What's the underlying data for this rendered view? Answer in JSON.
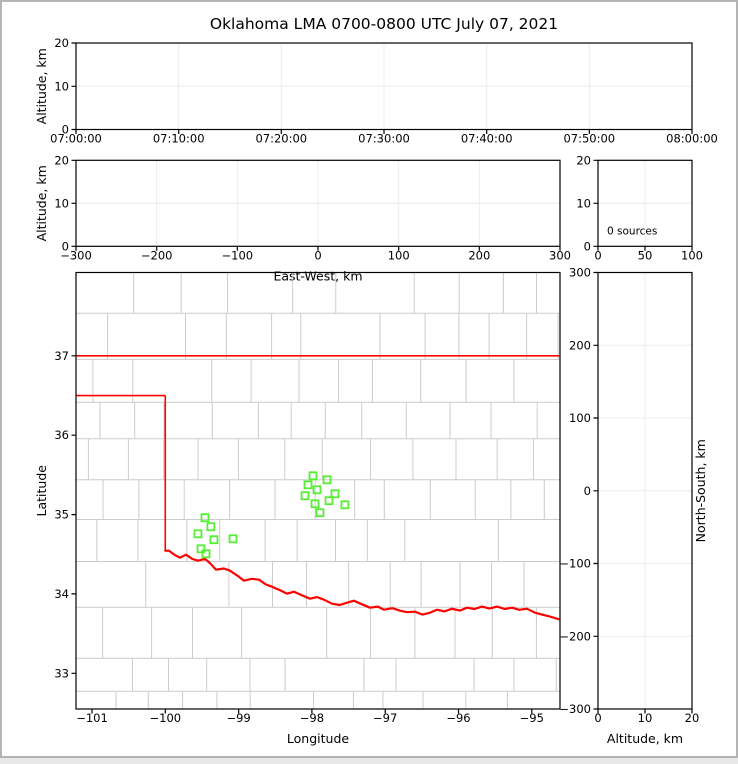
{
  "title": "Oklahoma LMA 0700-0800 UTC July 07, 2021",
  "colors": {
    "axis": "#000000",
    "grid": "#ececec",
    "county_line": "#cccccc",
    "state_border": "#ff0000",
    "station_marker": "#55ee33",
    "background": "#ffffff",
    "outer_frame": "#b4b4b4"
  },
  "chart_data": [
    {
      "id": "altitude_vs_time",
      "type": "scatter",
      "title": "",
      "xlabel": "",
      "ylabel": "Altitude, km",
      "x_tick_labels": [
        "07:00:00",
        "07:10:00",
        "07:20:00",
        "07:30:00",
        "07:40:00",
        "07:50:00",
        "08:00:00"
      ],
      "ylim": [
        0,
        20
      ],
      "yticks": [
        0,
        10,
        20
      ],
      "grid": true,
      "points": []
    },
    {
      "id": "altitude_vs_east_west",
      "type": "scatter",
      "xlabel": "East-West, km",
      "ylabel": "Altitude, km",
      "xlim": [
        -300,
        300
      ],
      "xticks": [
        -300,
        -200,
        -100,
        0,
        100,
        200,
        300
      ],
      "ylim": [
        0,
        20
      ],
      "yticks": [
        0,
        10,
        20
      ],
      "grid": true,
      "points": []
    },
    {
      "id": "source_count_histogram",
      "type": "line",
      "annotation": "0 sources",
      "xlabel": "",
      "ylabel": "",
      "xlim": [
        0,
        100
      ],
      "xticks": [
        0,
        50,
        100
      ],
      "ylim": [
        0,
        20
      ],
      "yticks": [
        0,
        10,
        20
      ],
      "grid": true,
      "points": []
    },
    {
      "id": "plan_view_map",
      "type": "scatter",
      "xlabel": "Longitude",
      "ylabel": "Latitude",
      "xlim": [
        -101.218,
        -94.615
      ],
      "xticks": [
        -101,
        -100,
        -99,
        -98,
        -97,
        -96,
        -95
      ],
      "ylim": [
        32.55,
        38.05
      ],
      "yticks": [
        33,
        34,
        35,
        36,
        37
      ],
      "grid": false,
      "stations": [
        [
          -97.985,
          35.489
        ],
        [
          -97.794,
          35.438
        ],
        [
          -98.053,
          35.375
        ],
        [
          -97.93,
          35.312
        ],
        [
          -98.094,
          35.237
        ],
        [
          -97.685,
          35.262
        ],
        [
          -97.767,
          35.174
        ],
        [
          -97.958,
          35.136
        ],
        [
          -97.549,
          35.123
        ],
        [
          -97.889,
          35.023
        ],
        [
          -99.458,
          34.96
        ],
        [
          -99.377,
          34.847
        ],
        [
          -99.554,
          34.758
        ],
        [
          -99.336,
          34.683
        ],
        [
          -99.076,
          34.695
        ],
        [
          -99.513,
          34.569
        ],
        [
          -99.445,
          34.506
        ]
      ],
      "state_border": {
        "north_border_lat": 37.0,
        "panhandle_south_lat": 36.5,
        "panhandle_east_lon": -100.0,
        "red_river": [
          [
            -100.0,
            34.545
          ],
          [
            -99.949,
            34.544
          ],
          [
            -99.87,
            34.49
          ],
          [
            -99.799,
            34.456
          ],
          [
            -99.717,
            34.494
          ],
          [
            -99.63,
            34.44
          ],
          [
            -99.554,
            34.418
          ],
          [
            -99.458,
            34.443
          ],
          [
            -99.38,
            34.38
          ],
          [
            -99.308,
            34.305
          ],
          [
            -99.2,
            34.32
          ],
          [
            -99.117,
            34.292
          ],
          [
            -99.0,
            34.22
          ],
          [
            -98.926,
            34.166
          ],
          [
            -98.82,
            34.19
          ],
          [
            -98.721,
            34.179
          ],
          [
            -98.63,
            34.12
          ],
          [
            -98.544,
            34.091
          ],
          [
            -98.44,
            34.05
          ],
          [
            -98.339,
            34.003
          ],
          [
            -98.244,
            34.028
          ],
          [
            -98.13,
            33.98
          ],
          [
            -98.025,
            33.94
          ],
          [
            -97.93,
            33.96
          ],
          [
            -97.835,
            33.927
          ],
          [
            -97.726,
            33.877
          ],
          [
            -97.62,
            33.86
          ],
          [
            -97.521,
            33.889
          ],
          [
            -97.426,
            33.915
          ],
          [
            -97.32,
            33.87
          ],
          [
            -97.207,
            33.826
          ],
          [
            -97.1,
            33.84
          ],
          [
            -97.017,
            33.801
          ],
          [
            -96.9,
            33.82
          ],
          [
            -96.798,
            33.789
          ],
          [
            -96.7,
            33.77
          ],
          [
            -96.594,
            33.776
          ],
          [
            -96.49,
            33.74
          ],
          [
            -96.389,
            33.764
          ],
          [
            -96.294,
            33.801
          ],
          [
            -96.19,
            33.78
          ],
          [
            -96.089,
            33.814
          ],
          [
            -95.98,
            33.79
          ],
          [
            -95.885,
            33.827
          ],
          [
            -95.78,
            33.81
          ],
          [
            -95.68,
            33.84
          ],
          [
            -95.575,
            33.815
          ],
          [
            -95.475,
            33.84
          ],
          [
            -95.37,
            33.81
          ],
          [
            -95.27,
            33.827
          ],
          [
            -95.17,
            33.8
          ],
          [
            -95.066,
            33.814
          ],
          [
            -94.957,
            33.764
          ],
          [
            -94.861,
            33.739
          ],
          [
            -94.752,
            33.714
          ],
          [
            -94.615,
            33.676
          ]
        ]
      }
    },
    {
      "id": "north_south_vs_altitude",
      "type": "scatter",
      "xlabel": "Altitude, km",
      "ylabel": "North-South, km",
      "xlim": [
        0,
        20
      ],
      "xticks": [
        0,
        10,
        20
      ],
      "ylim": [
        -300,
        300
      ],
      "yticks": [
        -300,
        -200,
        -100,
        0,
        100,
        200,
        300
      ],
      "grid": true,
      "points": []
    }
  ]
}
